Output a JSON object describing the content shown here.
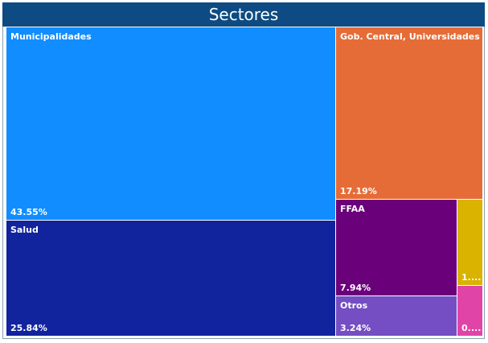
{
  "chart_data": {
    "type": "treemap",
    "title": "Sectores",
    "items": [
      {
        "name": "Municipalidades",
        "value": 43.55,
        "label": "43.55%",
        "color": "#118dff"
      },
      {
        "name": "Salud",
        "value": 25.84,
        "label": "25.84%",
        "color": "#12239e"
      },
      {
        "name": "Gob. Central, Universidades",
        "value": 17.19,
        "label": "17.19%",
        "color": "#e66c37"
      },
      {
        "name": "FFAA",
        "value": 7.94,
        "label": "7.94%",
        "color": "#6b007b"
      },
      {
        "name": "Otros",
        "value": 3.24,
        "label": "3.24%",
        "color": "#744ec2"
      },
      {
        "name": "",
        "value": 1.4,
        "label": "1....",
        "color": "#d9b300"
      },
      {
        "name": "",
        "value": 0.84,
        "label": "0....",
        "color": "#e044a7"
      }
    ]
  }
}
